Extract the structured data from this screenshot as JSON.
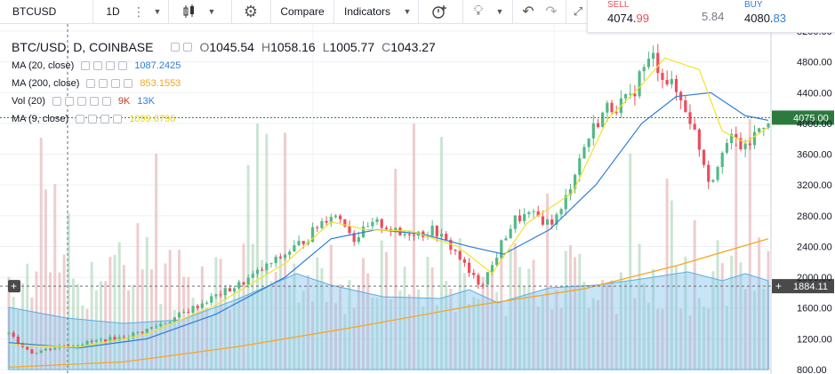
{
  "toolbar": {
    "symbol": "BTCUSD",
    "interval": "1D",
    "compare_label": "Compare",
    "indicators_label": "Indicators"
  },
  "quote": {
    "sell_label": "SELL",
    "sell_price_main": "4074.",
    "sell_price_tail": "99",
    "spread": "5.84",
    "buy_label": "BUY",
    "buy_price_main": "4080.",
    "buy_price_tail": "83"
  },
  "legend": {
    "title": "BTC/USD, D, COINBASE",
    "open_label": "O",
    "open": "1045.54",
    "high_label": "H",
    "high": "1058.16",
    "low_label": "L",
    "low": "1005.77",
    "close_label": "C",
    "close": "1043.27",
    "ma20_label": "MA (20, close)",
    "ma20_value": "1087.2425",
    "ma200_label": "MA (200, close)",
    "ma200_value": "853.1553",
    "vol_label": "Vol (20)",
    "vol_value_a": "9K",
    "vol_value_b": "13K",
    "ma9_label": "MA (9, close)",
    "ma9_value": "1099.6796"
  },
  "colors": {
    "up": "#53b987",
    "down": "#eb4d5c",
    "ma20": "#2f7ed8",
    "ma200": "#f5a623",
    "ma9": "#f2e22b",
    "vol_area": "#84c4ed",
    "vol_up": "#b9dcc4",
    "vol_down": "#e8bcbf",
    "last_price_tag": "#2d7a3e",
    "crosshair_tag": "#4a4a4a"
  },
  "chart_data": {
    "type": "candlestick",
    "symbol": "BTC/USD",
    "timeframe": "D",
    "exchange": "COINBASE",
    "y_axis_ticks": [
      800,
      1200,
      1600,
      2000,
      2400,
      2800,
      3200,
      3600,
      4000,
      4400,
      4800,
      5200
    ],
    "ylim": [
      800,
      5200
    ],
    "last_price": "4075.00",
    "crosshair_price": "1884.11",
    "bars_shown": 170,
    "close_path_points": [
      [
        0,
        1260
      ],
      [
        8,
        1020
      ],
      [
        16,
        1090
      ],
      [
        24,
        1130
      ],
      [
        32,
        1180
      ],
      [
        40,
        1220
      ],
      [
        48,
        1320
      ],
      [
        56,
        1440
      ],
      [
        64,
        1600
      ],
      [
        72,
        1760
      ],
      [
        80,
        1900
      ],
      [
        88,
        2100
      ],
      [
        96,
        2300
      ],
      [
        104,
        2520
      ],
      [
        108,
        2700
      ],
      [
        112,
        2820
      ],
      [
        116,
        2760
      ],
      [
        120,
        2500
      ],
      [
        124,
        2620
      ],
      [
        128,
        2700
      ],
      [
        132,
        2650
      ],
      [
        136,
        2540
      ],
      [
        140,
        2600
      ],
      [
        144,
        2570
      ],
      [
        148,
        2620
      ],
      [
        152,
        2450
      ],
      [
        156,
        2300
      ],
      [
        160,
        2050
      ],
      [
        164,
        1900
      ],
      [
        168,
        2150
      ],
      [
        172,
        2500
      ],
      [
        176,
        2750
      ],
      [
        180,
        2800
      ],
      [
        184,
        2780
      ],
      [
        188,
        2700
      ],
      [
        192,
        2850
      ],
      [
        196,
        3300
      ],
      [
        200,
        3700
      ],
      [
        204,
        4000
      ],
      [
        208,
        4200
      ],
      [
        212,
        4250
      ],
      [
        216,
        4300
      ],
      [
        220,
        4700
      ],
      [
        224,
        4850
      ],
      [
        228,
        4600
      ],
      [
        232,
        4400
      ],
      [
        236,
        4150
      ],
      [
        240,
        3700
      ],
      [
        244,
        3200
      ],
      [
        248,
        3700
      ],
      [
        252,
        3800
      ],
      [
        256,
        3650
      ],
      [
        260,
        3900
      ],
      [
        264,
        4075
      ]
    ],
    "ma20_points": [
      [
        0,
        1150
      ],
      [
        24,
        1080
      ],
      [
        48,
        1200
      ],
      [
        72,
        1520
      ],
      [
        96,
        2000
      ],
      [
        112,
        2500
      ],
      [
        128,
        2620
      ],
      [
        144,
        2560
      ],
      [
        160,
        2400
      ],
      [
        172,
        2300
      ],
      [
        188,
        2620
      ],
      [
        204,
        3200
      ],
      [
        220,
        4000
      ],
      [
        232,
        4350
      ],
      [
        244,
        4400
      ],
      [
        256,
        4100
      ],
      [
        264,
        4040
      ]
    ],
    "ma9_points": [
      [
        0,
        1120
      ],
      [
        24,
        1090
      ],
      [
        48,
        1260
      ],
      [
        72,
        1640
      ],
      [
        96,
        2180
      ],
      [
        112,
        2720
      ],
      [
        124,
        2620
      ],
      [
        140,
        2600
      ],
      [
        156,
        2400
      ],
      [
        168,
        2050
      ],
      [
        180,
        2700
      ],
      [
        196,
        3100
      ],
      [
        208,
        4050
      ],
      [
        220,
        4500
      ],
      [
        228,
        4850
      ],
      [
        240,
        4700
      ],
      [
        248,
        3900
      ],
      [
        256,
        3750
      ],
      [
        264,
        3950
      ]
    ],
    "ma200_points": [
      [
        0,
        830
      ],
      [
        40,
        900
      ],
      [
        80,
        1100
      ],
      [
        120,
        1350
      ],
      [
        160,
        1620
      ],
      [
        200,
        1850
      ],
      [
        232,
        2150
      ],
      [
        264,
        2500
      ]
    ]
  }
}
